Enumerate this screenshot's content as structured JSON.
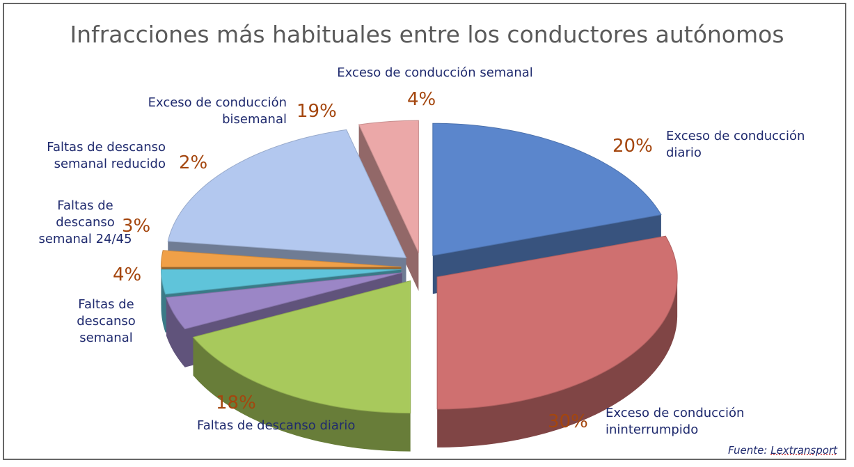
{
  "chart_data": {
    "type": "pie",
    "title": "Infracciones más habituales entre los conductores autónomos",
    "slices": [
      {
        "label": "Exceso de conducción diario",
        "value": 20,
        "pct_label": "20%",
        "color": "#5b86cc"
      },
      {
        "label": "Exceso de conducción ininterrumpido",
        "value": 30,
        "pct_label": "30%",
        "color": "#cf7070"
      },
      {
        "label": "Faltas de descanso diario",
        "value": 18,
        "pct_label": "18%",
        "color": "#a8c95c"
      },
      {
        "label": "Faltas de descanso semanal",
        "value": 4,
        "pct_label": "4%",
        "color": "#9b86c6"
      },
      {
        "label": "Faltas de descanso semanal 24/45",
        "value": 3,
        "pct_label": "3%",
        "color": "#5fc4da"
      },
      {
        "label": "Faltas de descanso semanal reducido",
        "value": 2,
        "pct_label": "2%",
        "color": "#f0a048"
      },
      {
        "label": "Exceso de conducción bisemanal",
        "value": 19,
        "pct_label": "19%",
        "color": "#b3c8ef"
      },
      {
        "label": "Exceso de conducción semanal",
        "value": 4,
        "pct_label": "4%",
        "color": "#eba8a8"
      }
    ],
    "style": "3d-exploded"
  },
  "source": {
    "prefix": "Fuente: ",
    "name": "Lextransport"
  }
}
